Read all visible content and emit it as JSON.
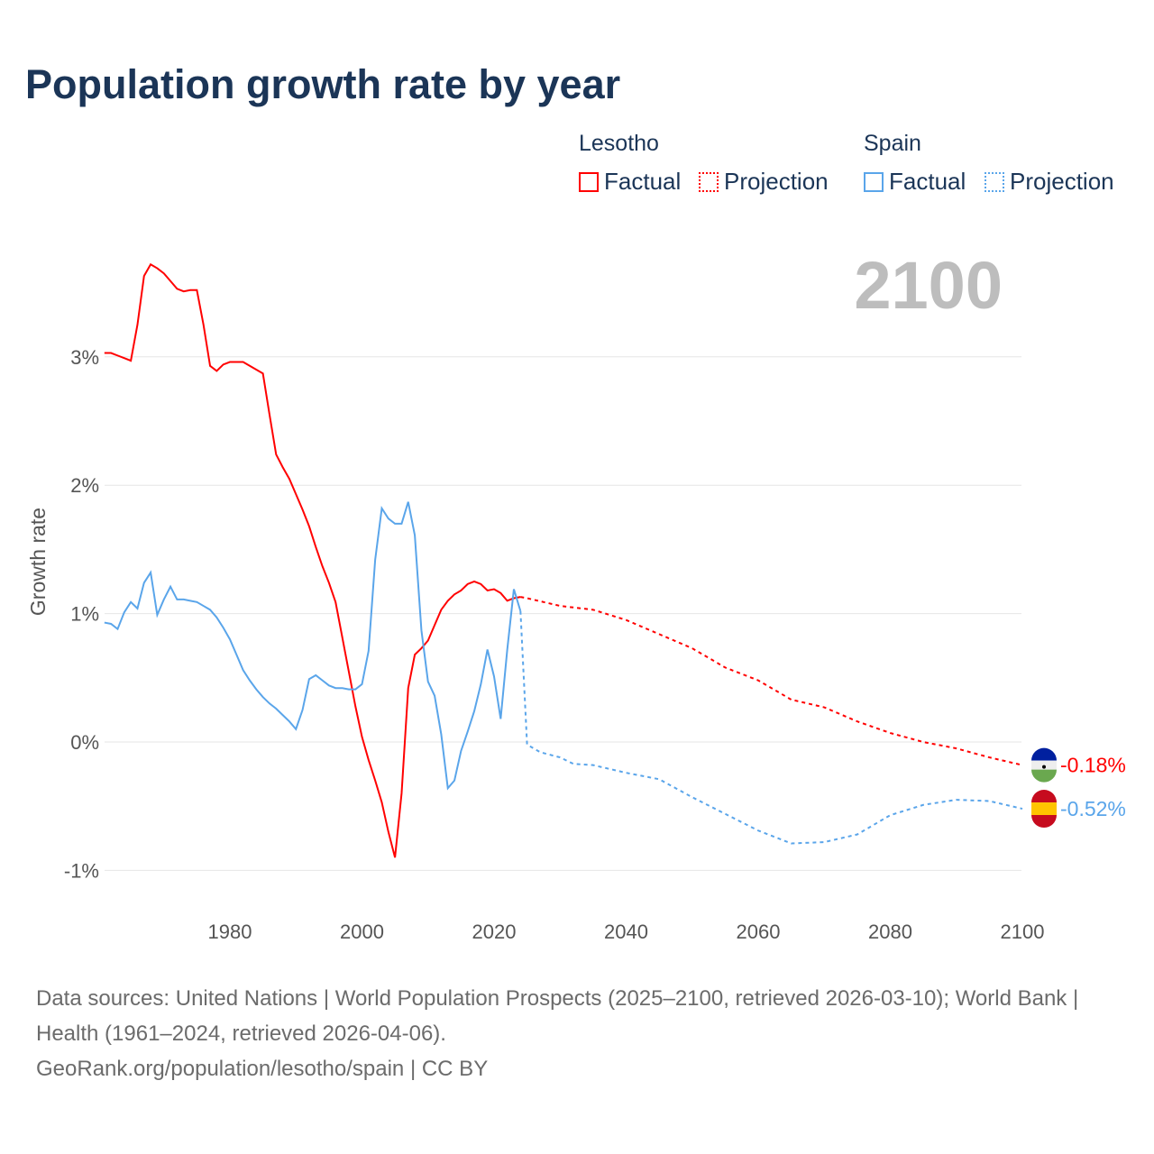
{
  "title": "Population growth rate by year",
  "legend": {
    "groups": [
      {
        "country": "Lesotho",
        "color": "#ff0000",
        "factual": "Factual",
        "projection": "Projection"
      },
      {
        "country": "Spain",
        "color": "#5aa5ea",
        "factual": "Factual",
        "projection": "Projection"
      }
    ]
  },
  "year_display": "2100",
  "footer": {
    "sources": "Data sources: United Nations | World Population Prospects (2025–2100, retrieved 2026-03-10); World Bank | Health (1961–2024, retrieved 2026-04-06).",
    "credit": "GeoRank.org/population/lesotho/spain | CC BY"
  },
  "chart_data": {
    "type": "line",
    "title": "Population growth rate by year",
    "ylabel": "Growth rate",
    "xlabel": "",
    "xlim": [
      1961,
      2100
    ],
    "ylim": [
      -1.3,
      3.9
    ],
    "x_ticks": [
      {
        "v": 1980,
        "label": "1980"
      },
      {
        "v": 2000,
        "label": "2000"
      },
      {
        "v": 2020,
        "label": "2020"
      },
      {
        "v": 2040,
        "label": "2040"
      },
      {
        "v": 2060,
        "label": "2060"
      },
      {
        "v": 2080,
        "label": "2080"
      },
      {
        "v": 2100,
        "label": "2100"
      }
    ],
    "y_ticks": [
      {
        "v": 3,
        "label": "3%"
      },
      {
        "v": 2,
        "label": "2%"
      },
      {
        "v": 1,
        "label": "1%"
      },
      {
        "v": 0,
        "label": "0%"
      },
      {
        "v": -1,
        "label": "-1%"
      }
    ],
    "grid": true,
    "series": [
      {
        "name": "Lesotho",
        "color": "#ff0000",
        "end_label": "-0.18%",
        "factual": {
          "start": 1961,
          "values": [
            3.03,
            3.03,
            3.01,
            2.99,
            2.97,
            3.25,
            3.63,
            3.72,
            3.69,
            3.65,
            3.59,
            3.53,
            3.51,
            3.52,
            3.52,
            3.25,
            2.93,
            2.89,
            2.94,
            2.96,
            2.96,
            2.96,
            2.93,
            2.9,
            2.87,
            2.55,
            2.24,
            2.14,
            2.05,
            1.93,
            1.81,
            1.68,
            1.52,
            1.37,
            1.24,
            1.09,
            0.82,
            0.55,
            0.28,
            0.04,
            -0.14,
            -0.3,
            -0.47,
            -0.7,
            -0.9,
            -0.4,
            0.42,
            0.68,
            0.73,
            0.79,
            0.91,
            1.03,
            1.1,
            1.15,
            1.18,
            1.23,
            1.25,
            1.23,
            1.18,
            1.19,
            1.16,
            1.1,
            1.12,
            1.13
          ]
        },
        "projection": {
          "x": [
            2024,
            2025,
            2030,
            2035,
            2040,
            2045,
            2050,
            2055,
            2060,
            2065,
            2070,
            2075,
            2080,
            2085,
            2090,
            2095,
            2100
          ],
          "values": [
            1.13,
            1.12,
            1.06,
            1.03,
            0.95,
            0.84,
            0.73,
            0.58,
            0.48,
            0.33,
            0.27,
            0.16,
            0.07,
            0.0,
            -0.05,
            -0.12,
            -0.18
          ]
        }
      },
      {
        "name": "Spain",
        "color": "#5aa5ea",
        "end_label": "-0.52%",
        "factual": {
          "start": 1961,
          "values": [
            0.93,
            0.92,
            0.88,
            1.01,
            1.09,
            1.04,
            1.24,
            1.32,
            0.99,
            1.11,
            1.21,
            1.11,
            1.11,
            1.1,
            1.09,
            1.06,
            1.03,
            0.97,
            0.89,
            0.8,
            0.68,
            0.56,
            0.48,
            0.41,
            0.35,
            0.3,
            0.26,
            0.21,
            0.16,
            0.1,
            0.25,
            0.49,
            0.52,
            0.48,
            0.44,
            0.42,
            0.42,
            0.41,
            0.41,
            0.45,
            0.71,
            1.42,
            1.82,
            1.74,
            1.7,
            1.7,
            1.87,
            1.61,
            0.87,
            0.47,
            0.36,
            0.06,
            -0.36,
            -0.3,
            -0.07,
            0.08,
            0.24,
            0.45,
            0.72,
            0.51,
            0.18,
            0.72,
            1.19,
            1.02
          ]
        },
        "projection": {
          "x": [
            2024,
            2025,
            2027,
            2030,
            2032,
            2035,
            2040,
            2045,
            2050,
            2055,
            2060,
            2065,
            2070,
            2075,
            2080,
            2085,
            2090,
            2095,
            2100
          ],
          "values": [
            1.02,
            -0.02,
            -0.08,
            -0.12,
            -0.17,
            -0.18,
            -0.24,
            -0.29,
            -0.43,
            -0.56,
            -0.69,
            -0.79,
            -0.78,
            -0.72,
            -0.57,
            -0.49,
            -0.45,
            -0.46,
            -0.52
          ]
        }
      }
    ]
  }
}
